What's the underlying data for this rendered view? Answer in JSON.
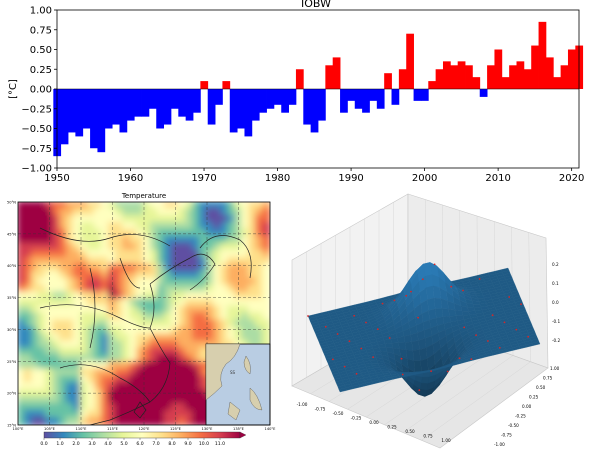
{
  "chart_data": [
    {
      "type": "area",
      "title": "IOBW",
      "ylabel": "[°C]",
      "xlabel": "",
      "xlim": [
        1950,
        2021
      ],
      "ylim": [
        -1.0,
        1.0
      ],
      "xticks": [
        "1950",
        "1960",
        "1970",
        "1980",
        "1990",
        "2000",
        "2010",
        "2020"
      ],
      "yticks": [
        "1.00",
        "0.75",
        "0.50",
        "0.25",
        "0.00",
        "−0.25",
        "−0.50",
        "−0.75",
        "−1.00"
      ],
      "positive_color": "#ff0000",
      "negative_color": "#0000ff",
      "grid": false,
      "x": [
        1950,
        1951,
        1952,
        1953,
        1954,
        1955,
        1956,
        1957,
        1958,
        1959,
        1960,
        1961,
        1962,
        1963,
        1964,
        1965,
        1966,
        1967,
        1968,
        1969,
        1970,
        1971,
        1972,
        1973,
        1974,
        1975,
        1976,
        1977,
        1978,
        1979,
        1980,
        1981,
        1982,
        1983,
        1984,
        1985,
        1986,
        1987,
        1988,
        1989,
        1990,
        1991,
        1992,
        1993,
        1994,
        1995,
        1996,
        1997,
        1998,
        1999,
        2000,
        2001,
        2002,
        2003,
        2004,
        2005,
        2006,
        2007,
        2008,
        2009,
        2010,
        2011,
        2012,
        2013,
        2014,
        2015,
        2016,
        2017,
        2018,
        2019,
        2020,
        2021
      ],
      "values": [
        -0.85,
        -0.7,
        -0.55,
        -0.6,
        -0.5,
        -0.75,
        -0.8,
        -0.5,
        -0.45,
        -0.55,
        -0.4,
        -0.35,
        -0.35,
        -0.25,
        -0.5,
        -0.45,
        -0.25,
        -0.35,
        -0.4,
        -0.3,
        0.1,
        -0.45,
        -0.2,
        0.1,
        -0.55,
        -0.5,
        -0.6,
        -0.4,
        -0.3,
        -0.25,
        -0.2,
        -0.3,
        -0.2,
        0.25,
        -0.45,
        -0.55,
        -0.4,
        0.3,
        0.4,
        -0.3,
        -0.15,
        -0.25,
        -0.3,
        -0.15,
        -0.25,
        0.2,
        -0.2,
        0.25,
        0.7,
        -0.15,
        -0.15,
        0.1,
        0.25,
        0.35,
        0.3,
        0.35,
        0.3,
        0.15,
        -0.1,
        0.3,
        0.5,
        0.15,
        0.3,
        0.35,
        0.25,
        0.55,
        0.85,
        0.4,
        0.15,
        0.3,
        0.5,
        0.55
      ]
    },
    {
      "type": "heatmap",
      "title": "Temperature",
      "colorbar_ticks": [
        "0.0",
        "1.0",
        "2.0",
        "3.0",
        "4.0",
        "5.0",
        "6.0",
        "7.0",
        "8.0",
        "9.0",
        "10.0",
        "11.0"
      ],
      "colorbar_range": [
        0,
        11
      ],
      "lon_ticks": [
        "100°E",
        "105°E",
        "110°E",
        "115°E",
        "120°E",
        "125°E",
        "130°E",
        "135°E",
        "140°E"
      ],
      "lat_ticks": [
        "50°N",
        "45°N",
        "40°N",
        "35°N",
        "30°N",
        "25°N",
        "20°N",
        "15°N"
      ],
      "colormap": [
        "#5e4fa2",
        "#3288bd",
        "#66c2a5",
        "#abdda4",
        "#e6f598",
        "#ffffbf",
        "#fee08b",
        "#fdae61",
        "#f46d43",
        "#d53e4f",
        "#9e0142"
      ],
      "inset_label": "SS"
    },
    {
      "type": "surface",
      "surface_color": "#1f5a85",
      "x_ticks": [
        "-1.00",
        "-0.75",
        "-0.50",
        "-0.25",
        "0.00",
        "0.25",
        "0.50",
        "0.75",
        "1.00"
      ],
      "y_ticks": [
        "-1.00",
        "-0.75",
        "-0.50",
        "-0.25",
        "0.00",
        "0.25",
        "0.50",
        "0.75",
        "1.00"
      ],
      "z_ticks": [
        "0.2",
        "0.1",
        "0.0",
        "-0.1",
        "-0.2"
      ],
      "peak_z": 0.25,
      "trough_z": -0.25
    }
  ]
}
